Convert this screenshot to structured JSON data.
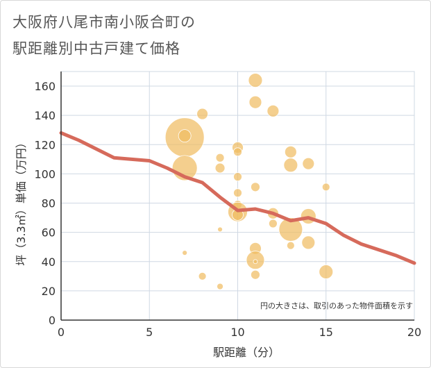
{
  "title_line1": "大阪府八尾市南小阪合町の",
  "title_line2": "駅距離別中古戸建て価格",
  "chart_data": {
    "type": "scatter",
    "title": "大阪府八尾市南小阪合町の駅距離別中古戸建て価格",
    "xlabel": "駅距離（分）",
    "ylabel": "坪（3.3㎡）単価（万円）",
    "xlim": [
      0,
      20
    ],
    "ylim": [
      0,
      170
    ],
    "xticks": [
      0,
      5,
      10,
      15,
      20
    ],
    "yticks": [
      0,
      20,
      40,
      60,
      80,
      100,
      120,
      140,
      160
    ],
    "grid": true,
    "note": "円の大きさは、取引のあった物件面積を示す",
    "bubble_color": "#f0bd62",
    "line_color": "#d66a5b",
    "points": [
      {
        "x": 7,
        "y": 125,
        "size": 28
      },
      {
        "x": 7,
        "y": 126,
        "size": 9
      },
      {
        "x": 7,
        "y": 104,
        "size": 18
      },
      {
        "x": 7,
        "y": 46,
        "size": 3.5
      },
      {
        "x": 8,
        "y": 141,
        "size": 8
      },
      {
        "x": 8,
        "y": 30,
        "size": 5.5
      },
      {
        "x": 9,
        "y": 111,
        "size": 6
      },
      {
        "x": 9,
        "y": 104,
        "size": 7
      },
      {
        "x": 9,
        "y": 62,
        "size": 3.5
      },
      {
        "x": 9,
        "y": 23,
        "size": 4.5
      },
      {
        "x": 10,
        "y": 118,
        "size": 8
      },
      {
        "x": 10,
        "y": 115,
        "size": 6
      },
      {
        "x": 10,
        "y": 98,
        "size": 6
      },
      {
        "x": 10,
        "y": 87,
        "size": 6
      },
      {
        "x": 10,
        "y": 79,
        "size": 6
      },
      {
        "x": 10,
        "y": 74,
        "size": 14
      },
      {
        "x": 10,
        "y": 72,
        "size": 8
      },
      {
        "x": 11,
        "y": 164,
        "size": 10
      },
      {
        "x": 11,
        "y": 149,
        "size": 9
      },
      {
        "x": 11,
        "y": 91,
        "size": 6.5
      },
      {
        "x": 11,
        "y": 49,
        "size": 8.5
      },
      {
        "x": 11,
        "y": 41,
        "size": 13
      },
      {
        "x": 11,
        "y": 40,
        "size": 3
      },
      {
        "x": 11,
        "y": 31,
        "size": 6.5
      },
      {
        "x": 12,
        "y": 143,
        "size": 8.5
      },
      {
        "x": 12,
        "y": 73,
        "size": 8
      },
      {
        "x": 12,
        "y": 66,
        "size": 6
      },
      {
        "x": 13,
        "y": 115,
        "size": 8.5
      },
      {
        "x": 13,
        "y": 106,
        "size": 10
      },
      {
        "x": 13,
        "y": 62,
        "size": 17
      },
      {
        "x": 13,
        "y": 51,
        "size": 5.5
      },
      {
        "x": 14,
        "y": 107,
        "size": 8.5
      },
      {
        "x": 14,
        "y": 71,
        "size": 11
      },
      {
        "x": 14,
        "y": 53,
        "size": 9.5
      },
      {
        "x": 15,
        "y": 91,
        "size": 5.5
      },
      {
        "x": 15,
        "y": 33,
        "size": 10
      }
    ],
    "trend": {
      "x": [
        0,
        1,
        2,
        3,
        4,
        5,
        6,
        7,
        8,
        9,
        10,
        11,
        12,
        13,
        14,
        15,
        16,
        17,
        18,
        19,
        20
      ],
      "y": [
        128,
        123,
        117,
        111,
        110,
        109,
        104,
        98,
        94,
        84,
        75,
        76,
        73,
        68,
        70,
        66,
        58,
        52,
        48,
        44,
        39
      ]
    }
  }
}
